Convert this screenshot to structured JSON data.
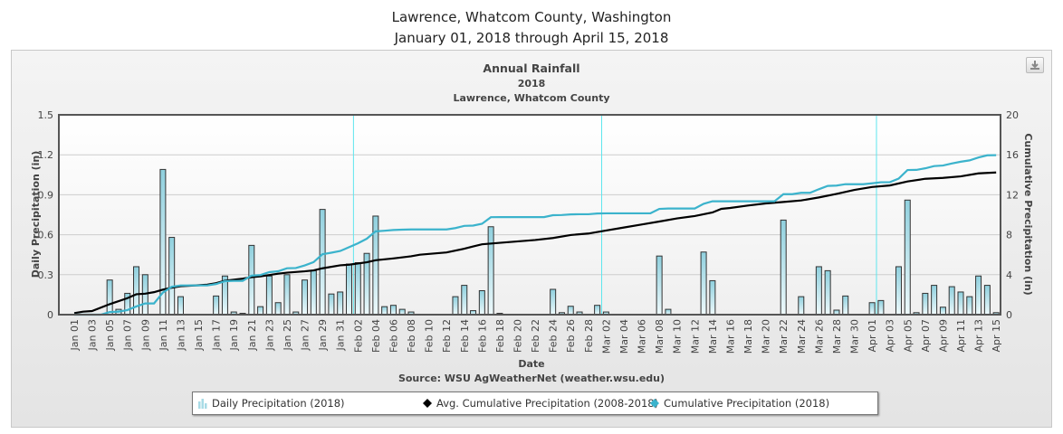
{
  "header": {
    "line1": "Lawrence, Whatcom County, Washington",
    "line2": "January 01, 2018 through April 15, 2018"
  },
  "chart_data": {
    "type": "bar+line",
    "title": "Annual Rainfall",
    "subtitle1": "2018",
    "subtitle2": "Lawrence, Whatcom County",
    "xlabel": "Date",
    "ylabel_left": "Daily Precipitation (in)",
    "ylabel_right": "Cumulative Precipitation (in)",
    "source": "Source:  WSU AgWeatherNet (weather.wsu.edu)",
    "ylim_left": [
      0,
      1.5
    ],
    "yticks_left": [
      "0",
      "0.3",
      "0.6",
      "0.9",
      "1.2",
      "1.5"
    ],
    "ylim_right": [
      0,
      20
    ],
    "yticks_right": [
      "0",
      "4",
      "8",
      "12",
      "16",
      "20"
    ],
    "grid": true,
    "legend_position": "bottom",
    "x_tick_labels": [
      "Jan 01",
      "Jan 03",
      "Jan 05",
      "Jan 07",
      "Jan 09",
      "Jan 11",
      "Jan 13",
      "Jan 15",
      "Jan 17",
      "Jan 19",
      "Jan 21",
      "Jan 23",
      "Jan 25",
      "Jan 27",
      "Jan 29",
      "Jan 31",
      "Feb 02",
      "Feb 04",
      "Feb 06",
      "Feb 08",
      "Feb 10",
      "Feb 12",
      "Feb 14",
      "Feb 16",
      "Feb 18",
      "Feb 20",
      "Feb 22",
      "Feb 24",
      "Feb 26",
      "Feb 28",
      "Mar 02",
      "Mar 04",
      "Mar 06",
      "Mar 08",
      "Mar 10",
      "Mar 12",
      "Mar 14",
      "Mar 16",
      "Mar 18",
      "Mar 20",
      "Mar 22",
      "Mar 24",
      "Mar 26",
      "Mar 28",
      "Mar 30",
      "Apr 01",
      "Apr 03",
      "Apr 05",
      "Apr 07",
      "Apr 09",
      "Apr 11",
      "Apr 13",
      "Apr 15"
    ],
    "month_boundaries_day_index": [
      31.5,
      59.5,
      90.5
    ],
    "series": [
      {
        "name": "Daily Precipitation (2018)",
        "type": "bar",
        "axis": "left",
        "color": "#a8dbe6",
        "values": [
          0,
          0,
          0,
          0,
          0.26,
          0.04,
          0.16,
          0.36,
          0.3,
          0,
          1.09,
          0.58,
          0.135,
          0,
          0,
          0,
          0.14,
          0.29,
          0.02,
          0.01,
          0.52,
          0.06,
          0.29,
          0.09,
          0.3,
          0.02,
          0.26,
          0.33,
          0.79,
          0.155,
          0.17,
          0.38,
          0.39,
          0.46,
          0.74,
          0.06,
          0.07,
          0.04,
          0.02,
          0,
          0,
          0,
          0,
          0.135,
          0.22,
          0.03,
          0.18,
          0.66,
          0.01,
          0,
          0,
          0,
          0,
          0,
          0.19,
          0.015,
          0.063,
          0.02,
          0,
          0.07,
          0.02,
          0,
          0,
          0,
          0,
          0,
          0.44,
          0.04,
          0,
          0,
          0,
          0.47,
          0.255,
          0,
          0,
          0,
          0,
          0,
          0,
          0,
          0.71,
          0,
          0.135,
          0,
          0.36,
          0.33,
          0.034,
          0.14,
          0,
          0,
          0.09,
          0.106,
          0,
          0.36,
          0.86,
          0.015,
          0.16,
          0.22,
          0.056,
          0.21,
          0.17,
          0.135,
          0.29,
          0.22,
          0.015
        ]
      },
      {
        "name": "Avg. Cumulative Precipitation (2008-2018)",
        "type": "line",
        "axis": "right",
        "color": "#000000",
        "points_day_value": [
          [
            0,
            0.15
          ],
          [
            1,
            0.3
          ],
          [
            2,
            0.36
          ],
          [
            4,
            1.05
          ],
          [
            6,
            1.65
          ],
          [
            7,
            2.04
          ],
          [
            8,
            2.1
          ],
          [
            9,
            2.25
          ],
          [
            10,
            2.5
          ],
          [
            11,
            2.7
          ],
          [
            12,
            2.85
          ],
          [
            14,
            2.94
          ],
          [
            15,
            3.0
          ],
          [
            16,
            3.15
          ],
          [
            17,
            3.4
          ],
          [
            18,
            3.5
          ],
          [
            19,
            3.6
          ],
          [
            20,
            3.75
          ],
          [
            21,
            3.83
          ],
          [
            23,
            4.1
          ],
          [
            24,
            4.2
          ],
          [
            26,
            4.34
          ],
          [
            27,
            4.43
          ],
          [
            28,
            4.64
          ],
          [
            30,
            4.94
          ],
          [
            31,
            5.0
          ],
          [
            33,
            5.24
          ],
          [
            34,
            5.45
          ],
          [
            36,
            5.63
          ],
          [
            38,
            5.84
          ],
          [
            39,
            6.0
          ],
          [
            42,
            6.23
          ],
          [
            44,
            6.6
          ],
          [
            45,
            6.83
          ],
          [
            46,
            7.04
          ],
          [
            48,
            7.19
          ],
          [
            52,
            7.47
          ],
          [
            54,
            7.67
          ],
          [
            56,
            7.97
          ],
          [
            58,
            8.12
          ],
          [
            60,
            8.42
          ],
          [
            62,
            8.72
          ],
          [
            64,
            9.02
          ],
          [
            66,
            9.32
          ],
          [
            68,
            9.63
          ],
          [
            70,
            9.87
          ],
          [
            72,
            10.23
          ],
          [
            73,
            10.59
          ],
          [
            74,
            10.68
          ],
          [
            76,
            10.92
          ],
          [
            78,
            11.13
          ],
          [
            80,
            11.28
          ],
          [
            82,
            11.43
          ],
          [
            84,
            11.73
          ],
          [
            86,
            12.09
          ],
          [
            88,
            12.48
          ],
          [
            90,
            12.78
          ],
          [
            92,
            12.93
          ],
          [
            94,
            13.33
          ],
          [
            96,
            13.6
          ],
          [
            98,
            13.69
          ],
          [
            100,
            13.84
          ],
          [
            102,
            14.14
          ],
          [
            104,
            14.23
          ]
        ]
      },
      {
        "name": "Cumulative Precipitation (2018)",
        "type": "line",
        "axis": "right",
        "color": "#3bb3cc",
        "derived_from": "running sum of daily precipitation"
      }
    ]
  },
  "legend": {
    "daily": "Daily Precipitation (2018)",
    "avg": "Avg. Cumulative Precipitation (2008-2018)",
    "cum": "Cumulative Precipitation (2018)"
  },
  "icons": {
    "download": "download-icon"
  }
}
